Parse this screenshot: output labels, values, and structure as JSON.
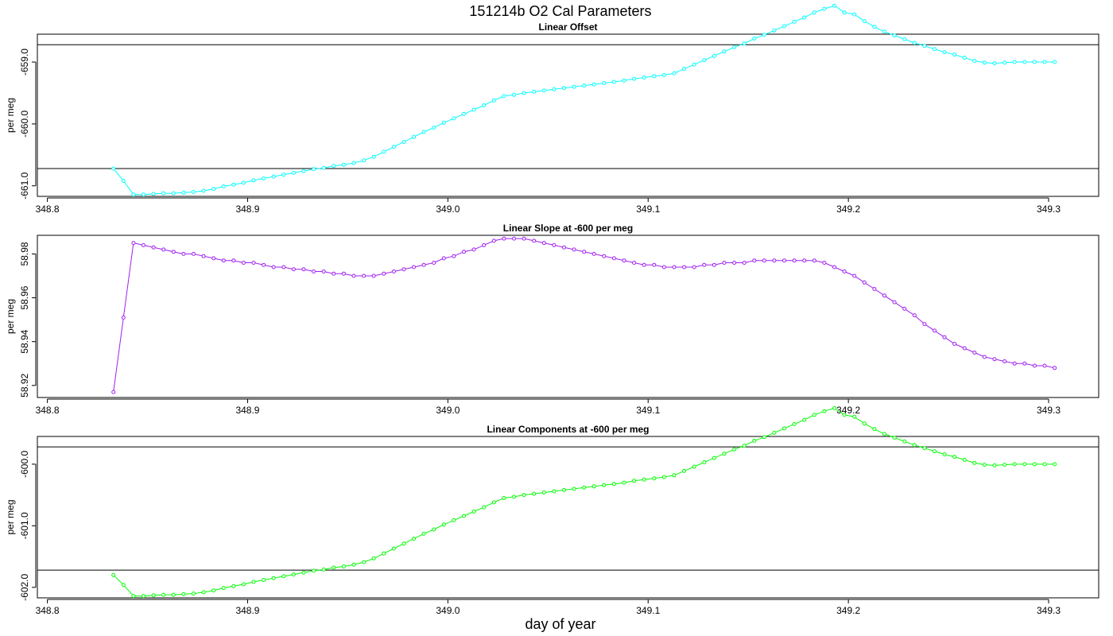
{
  "figure": {
    "title": "151214b   O2 Cal Parameters",
    "xlabel": "day of year"
  },
  "chart_data": [
    {
      "type": "line",
      "title": "Linear Offset",
      "ylabel": "per meg",
      "color": "#00ffff",
      "xlim": [
        348.795,
        349.325
      ],
      "ylim": [
        -661.17,
        -658.55
      ],
      "xticks": [
        "348.8",
        "348.9",
        "349.0",
        "349.1",
        "349.2",
        "349.3"
      ],
      "yticks": [
        "-659.0",
        "-660.0",
        "-661.0"
      ],
      "hlines": [
        -658.72,
        -660.72
      ],
      "x": [
        348.833,
        348.838,
        348.843,
        348.848,
        348.853,
        348.858,
        348.863,
        348.868,
        348.873,
        348.878,
        348.883,
        348.888,
        348.893,
        348.898,
        348.903,
        348.908,
        348.913,
        348.918,
        348.923,
        348.928,
        348.933,
        348.938,
        348.943,
        348.948,
        348.953,
        348.958,
        348.963,
        348.968,
        348.973,
        348.978,
        348.983,
        348.988,
        348.993,
        348.998,
        349.003,
        349.008,
        349.013,
        349.018,
        349.023,
        349.028,
        349.033,
        349.038,
        349.043,
        349.048,
        349.053,
        349.058,
        349.063,
        349.068,
        349.073,
        349.078,
        349.083,
        349.088,
        349.093,
        349.098,
        349.103,
        349.108,
        349.113,
        349.118,
        349.123,
        349.128,
        349.133,
        349.138,
        349.143,
        349.148,
        349.153,
        349.158,
        349.163,
        349.168,
        349.173,
        349.178,
        349.183,
        349.188,
        349.193,
        349.198,
        349.203,
        349.208,
        349.213,
        349.218,
        349.223,
        349.228,
        349.233,
        349.238,
        349.243,
        349.248,
        349.253,
        349.258,
        349.263,
        349.268,
        349.273,
        349.278,
        349.283,
        349.288,
        349.293,
        349.298,
        349.303
      ],
      "y": [
        -660.72,
        -660.92,
        -661.14,
        -661.14,
        -661.13,
        -661.12,
        -661.12,
        -661.11,
        -661.1,
        -661.08,
        -661.05,
        -661.01,
        -660.98,
        -660.95,
        -660.91,
        -660.88,
        -660.85,
        -660.82,
        -660.79,
        -660.76,
        -660.73,
        -660.71,
        -660.68,
        -660.66,
        -660.63,
        -660.59,
        -660.53,
        -660.45,
        -660.37,
        -660.29,
        -660.21,
        -660.13,
        -660.06,
        -659.98,
        -659.91,
        -659.84,
        -659.77,
        -659.7,
        -659.62,
        -659.55,
        -659.53,
        -659.5,
        -659.48,
        -659.46,
        -659.44,
        -659.42,
        -659.4,
        -659.38,
        -659.36,
        -659.34,
        -659.32,
        -659.3,
        -659.27,
        -659.25,
        -659.23,
        -659.21,
        -659.18,
        -659.11,
        -659.04,
        -658.97,
        -658.9,
        -658.83,
        -658.76,
        -658.7,
        -658.62,
        -658.56,
        -658.49,
        -658.42,
        -658.35,
        -658.28,
        -658.2,
        -658.14,
        -658.09,
        -658.2,
        -658.23,
        -658.34,
        -658.43,
        -658.51,
        -658.57,
        -658.63,
        -658.69,
        -658.74,
        -658.79,
        -658.84,
        -658.88,
        -658.93,
        -658.98,
        -659.01,
        -659.02,
        -659.01,
        -659.0,
        -659.0,
        -659.0,
        -659.0,
        -659.0
      ]
    },
    {
      "type": "line",
      "title": "Linear Slope at -600 per meg",
      "ylabel": "per meg",
      "color": "#a020f0",
      "xlim": [
        348.795,
        349.325
      ],
      "ylim": [
        58.9145,
        58.9885
      ],
      "xticks": [
        "348.8",
        "348.9",
        "349.0",
        "349.1",
        "349.2",
        "349.3"
      ],
      "yticks": [
        "58.92",
        "58.94",
        "58.96",
        "58.98"
      ],
      "hlines": [],
      "x": [
        348.833,
        348.838,
        348.843,
        348.848,
        348.853,
        348.858,
        348.863,
        348.868,
        348.873,
        348.878,
        348.883,
        348.888,
        348.893,
        348.898,
        348.903,
        348.908,
        348.913,
        348.918,
        348.923,
        348.928,
        348.933,
        348.938,
        348.943,
        348.948,
        348.953,
        348.958,
        348.963,
        348.968,
        348.973,
        348.978,
        348.983,
        348.988,
        348.993,
        348.998,
        349.003,
        349.008,
        349.013,
        349.018,
        349.023,
        349.028,
        349.033,
        349.038,
        349.043,
        349.048,
        349.053,
        349.058,
        349.063,
        349.068,
        349.073,
        349.078,
        349.083,
        349.088,
        349.093,
        349.098,
        349.103,
        349.108,
        349.113,
        349.118,
        349.123,
        349.128,
        349.133,
        349.138,
        349.143,
        349.148,
        349.153,
        349.158,
        349.163,
        349.168,
        349.173,
        349.178,
        349.183,
        349.188,
        349.193,
        349.198,
        349.203,
        349.208,
        349.213,
        349.218,
        349.223,
        349.228,
        349.233,
        349.238,
        349.243,
        349.248,
        349.253,
        349.258,
        349.263,
        349.268,
        349.273,
        349.278,
        349.283,
        349.288,
        349.293,
        349.298,
        349.303
      ],
      "y": [
        58.917,
        58.951,
        58.985,
        58.984,
        58.983,
        58.982,
        58.981,
        58.98,
        58.98,
        58.979,
        58.978,
        58.977,
        58.977,
        58.976,
        58.976,
        58.975,
        58.974,
        58.974,
        58.973,
        58.973,
        58.972,
        58.972,
        58.971,
        58.971,
        58.97,
        58.97,
        58.97,
        58.971,
        58.972,
        58.973,
        58.974,
        58.975,
        58.976,
        58.978,
        58.979,
        58.981,
        58.982,
        58.984,
        58.986,
        58.987,
        58.987,
        58.987,
        58.986,
        58.985,
        58.984,
        58.983,
        58.982,
        58.981,
        58.98,
        58.979,
        58.978,
        58.977,
        58.976,
        58.975,
        58.975,
        58.974,
        58.974,
        58.974,
        58.974,
        58.975,
        58.975,
        58.976,
        58.976,
        58.976,
        58.977,
        58.977,
        58.977,
        58.977,
        58.977,
        58.977,
        58.977,
        58.976,
        58.974,
        58.972,
        58.97,
        58.967,
        58.964,
        58.961,
        58.958,
        58.955,
        58.952,
        58.948,
        58.945,
        58.942,
        58.939,
        58.937,
        58.935,
        58.933,
        58.932,
        58.931,
        58.93,
        58.93,
        58.929,
        58.929,
        58.928
      ]
    },
    {
      "type": "line",
      "title": "Linear Components at -600 per meg",
      "ylabel": "per meg",
      "color": "#00ff00",
      "xlim": [
        348.795,
        349.325
      ],
      "ylim": [
        -602.17,
        -599.55
      ],
      "xticks": [
        "348.8",
        "348.9",
        "349.0",
        "349.1",
        "349.2",
        "349.3"
      ],
      "yticks": [
        "-600.0",
        "-601.0",
        "-602.0"
      ],
      "hlines": [
        -599.72,
        -601.72
      ],
      "x": [
        348.833,
        348.838,
        348.843,
        348.848,
        348.853,
        348.858,
        348.863,
        348.868,
        348.873,
        348.878,
        348.883,
        348.888,
        348.893,
        348.898,
        348.903,
        348.908,
        348.913,
        348.918,
        348.923,
        348.928,
        348.933,
        348.938,
        348.943,
        348.948,
        348.953,
        348.958,
        348.963,
        348.968,
        348.973,
        348.978,
        348.983,
        348.988,
        348.993,
        348.998,
        349.003,
        349.008,
        349.013,
        349.018,
        349.023,
        349.028,
        349.033,
        349.038,
        349.043,
        349.048,
        349.053,
        349.058,
        349.063,
        349.068,
        349.073,
        349.078,
        349.083,
        349.088,
        349.093,
        349.098,
        349.103,
        349.108,
        349.113,
        349.118,
        349.123,
        349.128,
        349.133,
        349.138,
        349.143,
        349.148,
        349.153,
        349.158,
        349.163,
        349.168,
        349.173,
        349.178,
        349.183,
        349.188,
        349.193,
        349.198,
        349.203,
        349.208,
        349.213,
        349.218,
        349.223,
        349.228,
        349.233,
        349.238,
        349.243,
        349.248,
        349.253,
        349.258,
        349.263,
        349.268,
        349.273,
        349.278,
        349.283,
        349.288,
        349.293,
        349.298,
        349.303
      ],
      "y": [
        -601.8,
        -601.96,
        -602.14,
        -602.14,
        -602.13,
        -602.12,
        -602.12,
        -602.11,
        -602.1,
        -602.08,
        -602.05,
        -602.01,
        -601.98,
        -601.95,
        -601.91,
        -601.88,
        -601.85,
        -601.82,
        -601.79,
        -601.76,
        -601.73,
        -601.71,
        -601.68,
        -601.66,
        -601.63,
        -601.59,
        -601.53,
        -601.45,
        -601.37,
        -601.29,
        -601.21,
        -601.13,
        -601.06,
        -600.98,
        -600.91,
        -600.84,
        -600.77,
        -600.7,
        -600.62,
        -600.55,
        -600.53,
        -600.5,
        -600.48,
        -600.46,
        -600.44,
        -600.42,
        -600.4,
        -600.38,
        -600.36,
        -600.34,
        -600.32,
        -600.3,
        -600.27,
        -600.25,
        -600.23,
        -600.21,
        -600.18,
        -600.11,
        -600.04,
        -599.97,
        -599.9,
        -599.83,
        -599.76,
        -599.7,
        -599.62,
        -599.56,
        -599.49,
        -599.42,
        -599.35,
        -599.28,
        -599.2,
        -599.14,
        -599.09,
        -599.2,
        -599.23,
        -599.34,
        -599.43,
        -599.51,
        -599.57,
        -599.63,
        -599.69,
        -599.74,
        -599.79,
        -599.84,
        -599.88,
        -599.93,
        -599.98,
        -600.01,
        -600.02,
        -600.01,
        -600.0,
        -600.0,
        -600.0,
        -600.0,
        -600.0
      ]
    }
  ]
}
